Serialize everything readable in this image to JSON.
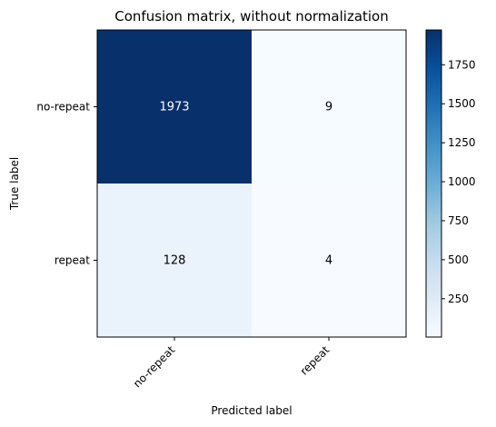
{
  "chart_data": {
    "type": "heatmap",
    "title": "Confusion matrix, without normalization",
    "xlabel": "Predicted label",
    "ylabel": "True label",
    "x_categories": [
      "no-repeat",
      "repeat"
    ],
    "y_categories": [
      "no-repeat",
      "repeat"
    ],
    "values": [
      [
        1973,
        9
      ],
      [
        128,
        4
      ]
    ],
    "colormap": "Blues",
    "colorbar": {
      "vmin": 4,
      "vmax": 1973,
      "ticks": [
        250,
        500,
        750,
        1000,
        1250,
        1500,
        1750
      ]
    },
    "grid": false
  }
}
